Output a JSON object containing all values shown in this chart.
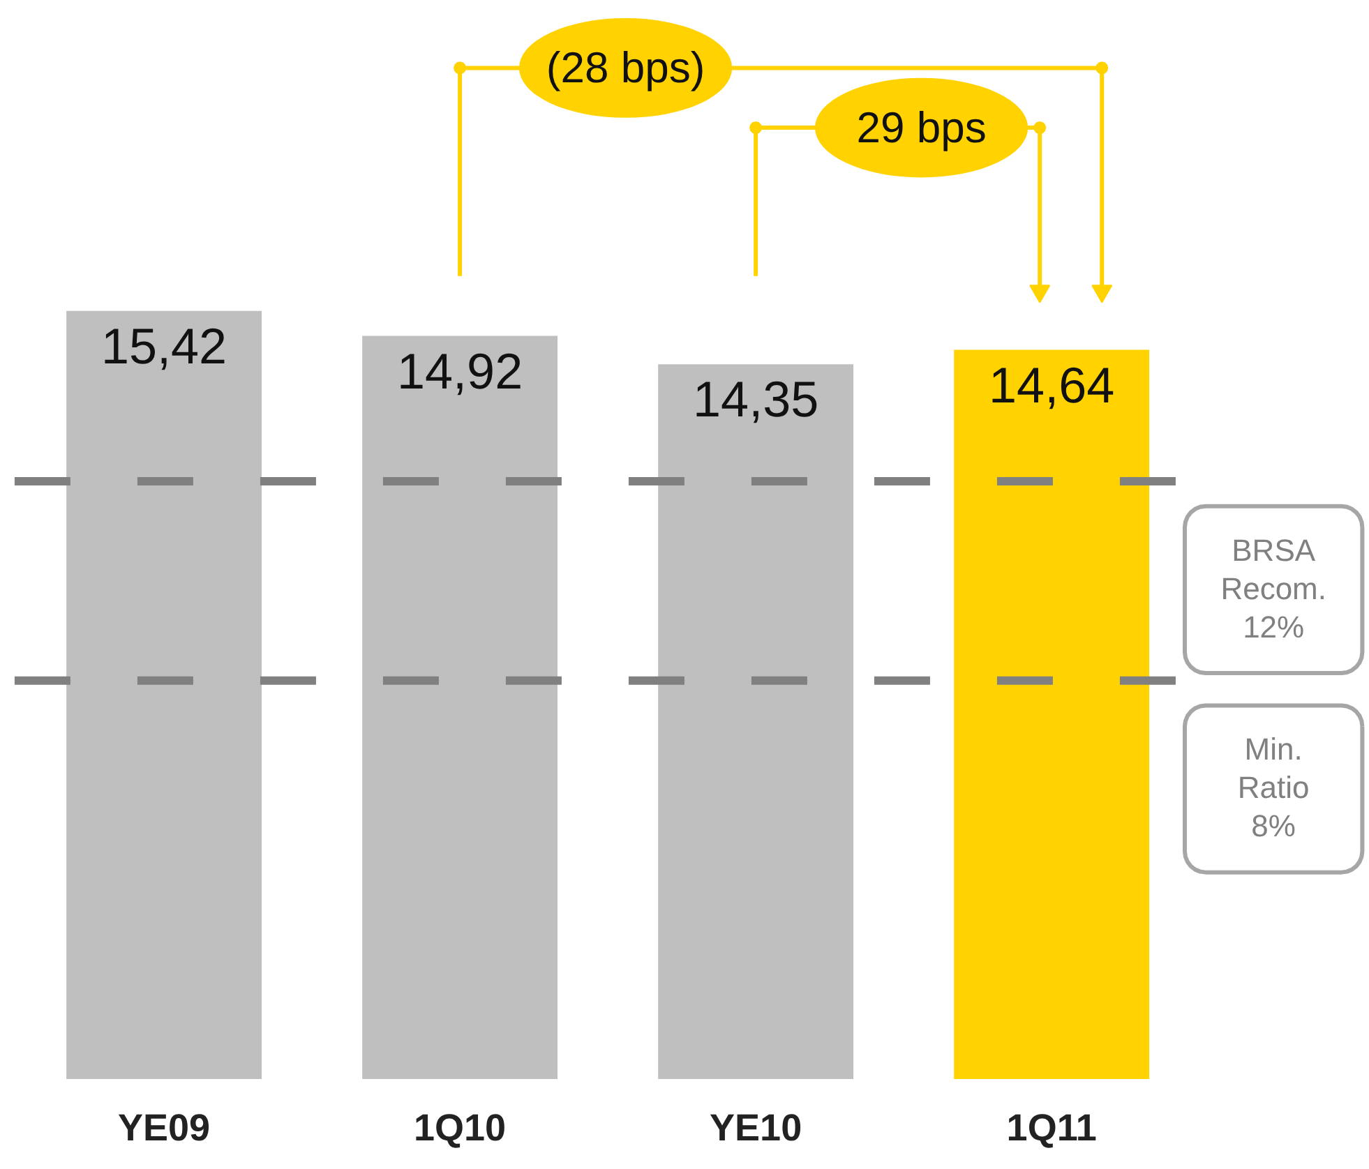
{
  "chart_data": {
    "type": "bar",
    "categories": [
      "YE09",
      "1Q10",
      "YE10",
      "1Q11"
    ],
    "values": [
      15.42,
      14.92,
      14.35,
      14.64
    ],
    "colors": [
      "#bfbfbf",
      "#bfbfbf",
      "#bfbfbf",
      "#ffd200"
    ],
    "value_labels": [
      "15,42",
      "14,92",
      "14,35",
      "14,64"
    ],
    "ref_lines": [
      {
        "axis": "y",
        "value": 12,
        "label": "BRSA Recom. 12%",
        "color": "#808080",
        "line_style": "dashed"
      },
      {
        "axis": "y",
        "value": 8,
        "label": "Min. Ratio 8%",
        "color": "#808080",
        "line_style": "dashed"
      }
    ],
    "annotations": [
      "(28 bps)",
      "29 bps"
    ],
    "tick_labels": "x",
    "grid": false
  }
}
